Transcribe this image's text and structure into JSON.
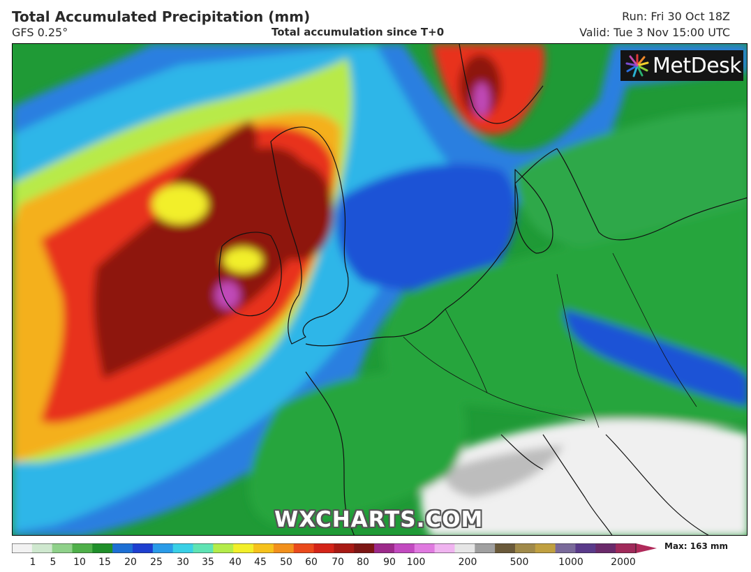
{
  "header": {
    "title": "Total Accumulated Precipitation (mm)",
    "model": "GFS 0.25°",
    "subtitle": "Total accumulation since T+0",
    "run": "Run: Fri 30 Oct 18Z",
    "valid": "Valid: Tue 3 Nov 15:00 UTC"
  },
  "logo": {
    "text": "MetDesk",
    "icon": "metdesk-starburst-logo"
  },
  "watermark": "WXCHARTS.COM",
  "legend": {
    "max_label": "Max: 163 mm",
    "ticks": [
      "1",
      "5",
      "10",
      "15",
      "20",
      "25",
      "30",
      "35",
      "40",
      "45",
      "50",
      "60",
      "70",
      "80",
      "90",
      "100",
      "200",
      "500",
      "1000",
      "2000"
    ],
    "colors": [
      "#f2f2f2",
      "#cfe8cf",
      "#8fd18a",
      "#4fb04a",
      "#1f8f2a",
      "#1d6fd4",
      "#1e3fd0",
      "#2a9be8",
      "#39d0e6",
      "#5fe3b4",
      "#b4ec4a",
      "#f2ef2a",
      "#f6c21c",
      "#f2901c",
      "#ea4a1c",
      "#d42418",
      "#a81a14",
      "#7c1614",
      "#9c2a8a",
      "#c24ac0",
      "#e07ae0",
      "#f0b4f0",
      "#e6e6e6",
      "#a0a0a0",
      "#6a5a3a",
      "#a08a4a",
      "#c0a040",
      "#7a6a9a",
      "#5a3a8a",
      "#6a2a6a",
      "#a02a5a"
    ]
  },
  "map": {
    "description_colors": {
      "heavy": "#8e1810",
      "extreme": "#c048b8",
      "moderate": "#e8321a",
      "light_blue": "#1e52d6",
      "cyan": "#2aa8e6",
      "green": "#1f9a36",
      "none": "#f0f0f0"
    }
  }
}
